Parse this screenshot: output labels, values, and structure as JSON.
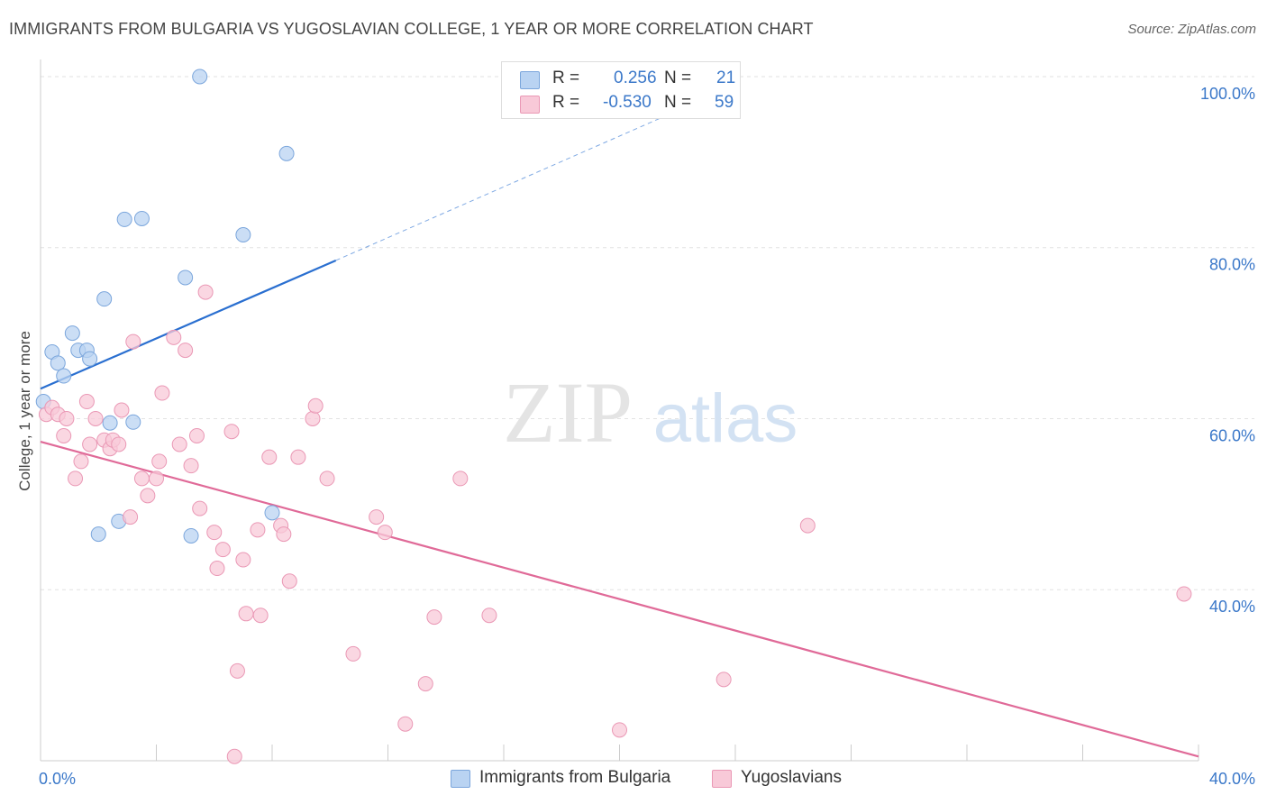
{
  "title": "IMMIGRANTS FROM BULGARIA VS YUGOSLAVIAN COLLEGE, 1 YEAR OR MORE CORRELATION CHART",
  "source": "Source: ZipAtlas.com",
  "watermark": {
    "zip": "ZIP",
    "atlas": "atlas"
  },
  "colors": {
    "blue_fill": "#b9d3f2",
    "blue_stroke": "#7ba6dc",
    "blue_line": "#2a6fd0",
    "pink_fill": "#f8c9d8",
    "pink_stroke": "#ea98b5",
    "pink_line": "#e06a98",
    "tick_text": "#3b78c9",
    "grid": "#e2e2e2"
  },
  "legend_top": [
    {
      "r_label": "R =",
      "r_value": "0.256",
      "n_label": "N =",
      "n_value": "21"
    },
    {
      "r_label": "R =",
      "r_value": "-0.530",
      "n_label": "N =",
      "n_value": "59"
    }
  ],
  "legend_bottom": [
    "Immigrants from Bulgaria",
    "Yugoslavians"
  ],
  "chart_data": {
    "type": "scatter",
    "title": "IMMIGRANTS FROM BULGARIA VS YUGOSLAVIAN COLLEGE, 1 YEAR OR MORE CORRELATION CHART",
    "xlabel": "",
    "ylabel": "College, 1 year or more",
    "xlim": [
      0,
      40
    ],
    "ylim": [
      20,
      102
    ],
    "x_ticks": [
      {
        "value": 0,
        "label": "0.0%"
      },
      {
        "value": 40,
        "label": "40.0%"
      }
    ],
    "y_ticks": [
      {
        "value": 100,
        "label": "100.0%"
      },
      {
        "value": 80,
        "label": "80.0%"
      },
      {
        "value": 60,
        "label": "60.0%"
      },
      {
        "value": 40,
        "label": "40.0%"
      }
    ],
    "grid": true,
    "legend_position": "top-center",
    "series": [
      {
        "name": "Immigrants from Bulgaria",
        "color": "#b9d3f2",
        "points": [
          [
            0.1,
            62.0
          ],
          [
            0.4,
            67.8
          ],
          [
            0.6,
            66.5
          ],
          [
            0.8,
            65.0
          ],
          [
            1.1,
            70.0
          ],
          [
            1.3,
            68.0
          ],
          [
            1.6,
            68.0
          ],
          [
            1.7,
            67.0
          ],
          [
            2.2,
            74.0
          ],
          [
            2.4,
            59.5
          ],
          [
            2.7,
            48.0
          ],
          [
            2.9,
            83.3
          ],
          [
            3.2,
            59.6
          ],
          [
            3.5,
            83.4
          ],
          [
            2.0,
            46.5
          ],
          [
            5.0,
            76.5
          ],
          [
            5.2,
            46.3
          ],
          [
            5.5,
            100.0
          ],
          [
            7.0,
            81.5
          ],
          [
            8.0,
            49.0
          ],
          [
            8.5,
            91.0
          ]
        ],
        "trend": {
          "x": [
            0,
            10.2
          ],
          "y": [
            63.5,
            78.5
          ],
          "extended_to": [
            23.0,
            97.5
          ]
        }
      },
      {
        "name": "Yugoslavians",
        "color": "#f8c9d8",
        "points": [
          [
            0.2,
            60.5
          ],
          [
            0.4,
            61.3
          ],
          [
            0.6,
            60.5
          ],
          [
            0.8,
            58.0
          ],
          [
            0.9,
            60.0
          ],
          [
            1.2,
            53.0
          ],
          [
            1.4,
            55.0
          ],
          [
            1.6,
            62.0
          ],
          [
            1.7,
            57.0
          ],
          [
            1.9,
            60.0
          ],
          [
            2.2,
            57.5
          ],
          [
            2.4,
            56.5
          ],
          [
            2.5,
            57.5
          ],
          [
            2.7,
            57.0
          ],
          [
            2.8,
            61.0
          ],
          [
            3.1,
            48.5
          ],
          [
            3.2,
            69.0
          ],
          [
            3.5,
            53.0
          ],
          [
            3.7,
            51.0
          ],
          [
            4.0,
            53.0
          ],
          [
            4.1,
            55.0
          ],
          [
            4.2,
            63.0
          ],
          [
            4.6,
            69.5
          ],
          [
            4.8,
            57.0
          ],
          [
            5.0,
            68.0
          ],
          [
            5.2,
            54.5
          ],
          [
            5.4,
            58.0
          ],
          [
            5.5,
            49.5
          ],
          [
            5.7,
            74.8
          ],
          [
            6.0,
            46.7
          ],
          [
            6.1,
            42.5
          ],
          [
            6.3,
            44.7
          ],
          [
            6.6,
            58.5
          ],
          [
            6.8,
            30.5
          ],
          [
            7.0,
            43.5
          ],
          [
            7.1,
            37.2
          ],
          [
            7.5,
            47.0
          ],
          [
            7.6,
            37.0
          ],
          [
            7.9,
            55.5
          ],
          [
            8.3,
            47.5
          ],
          [
            8.4,
            46.5
          ],
          [
            8.6,
            41.0
          ],
          [
            8.9,
            55.5
          ],
          [
            9.4,
            60.0
          ],
          [
            9.5,
            61.5
          ],
          [
            9.9,
            53.0
          ],
          [
            6.7,
            20.5
          ],
          [
            10.8,
            32.5
          ],
          [
            11.6,
            48.5
          ],
          [
            11.9,
            46.7
          ],
          [
            12.6,
            24.3
          ],
          [
            13.3,
            29.0
          ],
          [
            13.6,
            36.8
          ],
          [
            14.5,
            53.0
          ],
          [
            15.5,
            37.0
          ],
          [
            20.0,
            23.6
          ],
          [
            23.6,
            29.5
          ],
          [
            26.5,
            47.5
          ],
          [
            39.5,
            39.5
          ]
        ],
        "trend": {
          "x": [
            0,
            40
          ],
          "y": [
            57.3,
            20.5
          ]
        }
      }
    ]
  }
}
